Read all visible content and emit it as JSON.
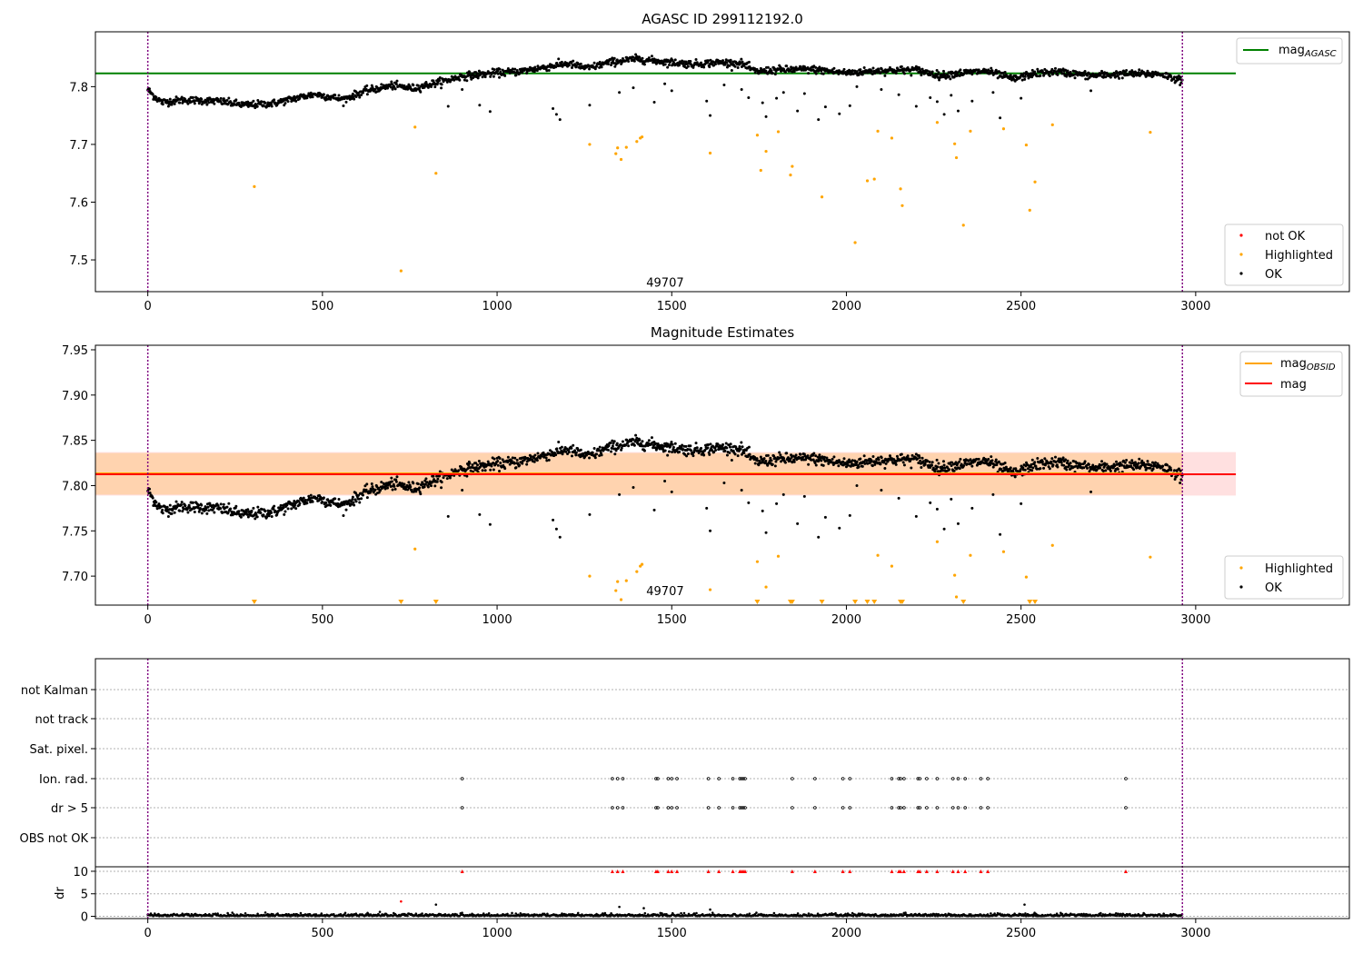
{
  "figure": {
    "title_top": "AGASC ID 299112192.0",
    "title_mid": "Magnitude Estimates"
  },
  "chart_data": [
    {
      "type": "scatter",
      "title": "AGASC ID 299112192.0",
      "xlim": [
        -150,
        3440
      ],
      "ylim": [
        7.445,
        7.895
      ],
      "xticks": [
        0,
        500,
        1000,
        1500,
        2000,
        2500,
        3000
      ],
      "yticks": [
        7.5,
        7.6,
        7.7,
        7.8
      ],
      "vlines": [
        0,
        2962
      ],
      "hline": {
        "y": 7.823,
        "x": [
          -150,
          3115
        ],
        "color": "#008000",
        "label": "mag",
        "label_sub": "AGASC"
      },
      "annotation": {
        "text": "49707",
        "x": 1481,
        "y": 7.46
      },
      "legend_series": [
        {
          "name": "not OK",
          "color": "#ff0000"
        },
        {
          "name": "Highlighted",
          "color": "#ffa500"
        },
        {
          "name": "OK",
          "color": "#000000"
        }
      ],
      "trend": [
        [
          0,
          7.795
        ],
        [
          15,
          7.785
        ],
        [
          40,
          7.773
        ],
        [
          100,
          7.777
        ],
        [
          200,
          7.775
        ],
        [
          280,
          7.768
        ],
        [
          360,
          7.771
        ],
        [
          430,
          7.781
        ],
        [
          480,
          7.787
        ],
        [
          560,
          7.778
        ],
        [
          620,
          7.792
        ],
        [
          700,
          7.802
        ],
        [
          760,
          7.797
        ],
        [
          850,
          7.81
        ],
        [
          900,
          7.818
        ],
        [
          1000,
          7.824
        ],
        [
          1060,
          7.826
        ],
        [
          1120,
          7.832
        ],
        [
          1200,
          7.84
        ],
        [
          1260,
          7.832
        ],
        [
          1320,
          7.842
        ],
        [
          1400,
          7.848
        ],
        [
          1480,
          7.843
        ],
        [
          1560,
          7.839
        ],
        [
          1640,
          7.842
        ],
        [
          1700,
          7.84
        ],
        [
          1740,
          7.826
        ],
        [
          1800,
          7.829
        ],
        [
          1900,
          7.83
        ],
        [
          2000,
          7.824
        ],
        [
          2100,
          7.828
        ],
        [
          2200,
          7.829
        ],
        [
          2270,
          7.819
        ],
        [
          2300,
          7.822
        ],
        [
          2400,
          7.827
        ],
        [
          2480,
          7.813
        ],
        [
          2530,
          7.822
        ],
        [
          2600,
          7.826
        ],
        [
          2700,
          7.819
        ],
        [
          2800,
          7.822
        ],
        [
          2900,
          7.822
        ],
        [
          2962,
          7.81
        ]
      ],
      "scatter_ok": [
        [
          860,
          7.766
        ],
        [
          900,
          7.795
        ],
        [
          950,
          7.768
        ],
        [
          980,
          7.757
        ],
        [
          1160,
          7.762
        ],
        [
          1170,
          7.752
        ],
        [
          1180,
          7.743
        ],
        [
          1265,
          7.768
        ],
        [
          1350,
          7.79
        ],
        [
          1390,
          7.798
        ],
        [
          1450,
          7.773
        ],
        [
          1480,
          7.805
        ],
        [
          1500,
          7.793
        ],
        [
          1600,
          7.775
        ],
        [
          1610,
          7.75
        ],
        [
          1650,
          7.803
        ],
        [
          1700,
          7.795
        ],
        [
          1720,
          7.781
        ],
        [
          1760,
          7.772
        ],
        [
          1770,
          7.748
        ],
        [
          1800,
          7.78
        ],
        [
          1820,
          7.79
        ],
        [
          1860,
          7.758
        ],
        [
          1880,
          7.788
        ],
        [
          1920,
          7.743
        ],
        [
          1940,
          7.765
        ],
        [
          1980,
          7.753
        ],
        [
          2010,
          7.767
        ],
        [
          2030,
          7.8
        ],
        [
          2100,
          7.795
        ],
        [
          2150,
          7.786
        ],
        [
          2200,
          7.766
        ],
        [
          2240,
          7.781
        ],
        [
          2260,
          7.774
        ],
        [
          2280,
          7.752
        ],
        [
          2300,
          7.785
        ],
        [
          2320,
          7.758
        ],
        [
          2360,
          7.775
        ],
        [
          2420,
          7.79
        ],
        [
          2440,
          7.746
        ],
        [
          2500,
          7.78
        ],
        [
          2700,
          7.793
        ]
      ],
      "scatter_highlighted": [
        [
          305,
          7.627
        ],
        [
          725,
          7.481
        ],
        [
          765,
          7.73
        ],
        [
          825,
          7.65
        ],
        [
          1265,
          7.7
        ],
        [
          1340,
          7.684
        ],
        [
          1345,
          7.694
        ],
        [
          1355,
          7.674
        ],
        [
          1370,
          7.695
        ],
        [
          1400,
          7.705
        ],
        [
          1410,
          7.711
        ],
        [
          1415,
          7.713
        ],
        [
          1610,
          7.685
        ],
        [
          1745,
          7.716
        ],
        [
          1755,
          7.655
        ],
        [
          1770,
          7.688
        ],
        [
          1805,
          7.722
        ],
        [
          1840,
          7.647
        ],
        [
          1845,
          7.662
        ],
        [
          1930,
          7.609
        ],
        [
          2025,
          7.53
        ],
        [
          2060,
          7.637
        ],
        [
          2080,
          7.64
        ],
        [
          2090,
          7.723
        ],
        [
          2130,
          7.711
        ],
        [
          2155,
          7.623
        ],
        [
          2160,
          7.594
        ],
        [
          2260,
          7.738
        ],
        [
          2310,
          7.701
        ],
        [
          2315,
          7.677
        ],
        [
          2335,
          7.56
        ],
        [
          2355,
          7.723
        ],
        [
          2450,
          7.727
        ],
        [
          2515,
          7.699
        ],
        [
          2525,
          7.586
        ],
        [
          2540,
          7.635
        ],
        [
          2590,
          7.734
        ],
        [
          2870,
          7.721
        ]
      ]
    },
    {
      "type": "scatter",
      "title": "Magnitude Estimates",
      "xlim": [
        -150,
        3440
      ],
      "ylim": [
        7.668,
        7.955
      ],
      "xticks": [
        0,
        500,
        1000,
        1500,
        2000,
        2500,
        3000
      ],
      "yticks": [
        7.7,
        7.75,
        7.8,
        7.85,
        7.9,
        7.95
      ],
      "ytick_labels": [
        "7.70",
        "7.75",
        "7.80",
        "7.85",
        "7.90",
        "7.95"
      ],
      "vlines": [
        0,
        2962
      ],
      "bands": [
        {
          "y": [
            7.789,
            7.837
          ],
          "x": [
            -150,
            3115
          ],
          "color": "#ff0000",
          "opacity": 0.12
        },
        {
          "y": [
            7.79,
            7.836
          ],
          "x": [
            -150,
            2962
          ],
          "color": "#ffa500",
          "opacity": 0.22
        }
      ],
      "lines": [
        {
          "name": "mag",
          "sub": "OBSID",
          "y": 7.8135,
          "x": [
            -150,
            2962
          ],
          "color": "#ffa500"
        },
        {
          "name": "mag",
          "y": 7.8125,
          "x": [
            -150,
            3115
          ],
          "color": "#ff0000"
        }
      ],
      "annotation": {
        "text": "49707",
        "x": 1481,
        "y": 7.683
      },
      "legend_lines": [
        {
          "name": "mag",
          "sub": "OBSID",
          "color": "#ffa500"
        },
        {
          "name": "mag",
          "color": "#ff0000"
        }
      ],
      "legend_series": [
        {
          "name": "Highlighted",
          "color": "#ffa500"
        },
        {
          "name": "OK",
          "color": "#000000"
        }
      ],
      "offscale_markers_x": [
        305,
        725,
        825,
        1745,
        1840,
        1845,
        1930,
        2025,
        2060,
        2080,
        2155,
        2160,
        2335,
        2525,
        2540
      ]
    },
    {
      "type": "scatter",
      "title": "",
      "xlim": [
        -150,
        3440
      ],
      "ytick_labels": [
        "not Kalman",
        "not track",
        "Sat. pixel.",
        "Ion. rad.",
        "dr > 5",
        "OBS not OK"
      ],
      "flag_points": {
        "Ion. rad.": [
          900,
          1330,
          1345,
          1360,
          1455,
          1460,
          1490,
          1500,
          1515,
          1605,
          1635,
          1675,
          1695,
          1700,
          1705,
          1710,
          1845,
          1910,
          1990,
          2010,
          2130,
          2150,
          2155,
          2165,
          2205,
          2210,
          2230,
          2260,
          2305,
          2320,
          2340,
          2385,
          2405,
          2800
        ],
        "dr > 5": [
          900,
          1330,
          1345,
          1360,
          1455,
          1460,
          1490,
          1500,
          1515,
          1605,
          1635,
          1675,
          1695,
          1700,
          1705,
          1710,
          1845,
          1910,
          1990,
          2010,
          2130,
          2150,
          2155,
          2165,
          2205,
          2210,
          2230,
          2260,
          2305,
          2320,
          2340,
          2385,
          2405,
          2800
        ]
      },
      "dr_panel": {
        "ylabel": "dr",
        "yticks": [
          0,
          5,
          10
        ],
        "ylim": [
          -0.5,
          11
        ],
        "capped_value": 10,
        "extra_points": [
          [
            725,
            3.3
          ],
          [
            825,
            2.6
          ],
          [
            1350,
            2.1
          ],
          [
            1420,
            1.8
          ],
          [
            1610,
            1.5
          ],
          [
            2510,
            2.6
          ]
        ]
      }
    }
  ]
}
